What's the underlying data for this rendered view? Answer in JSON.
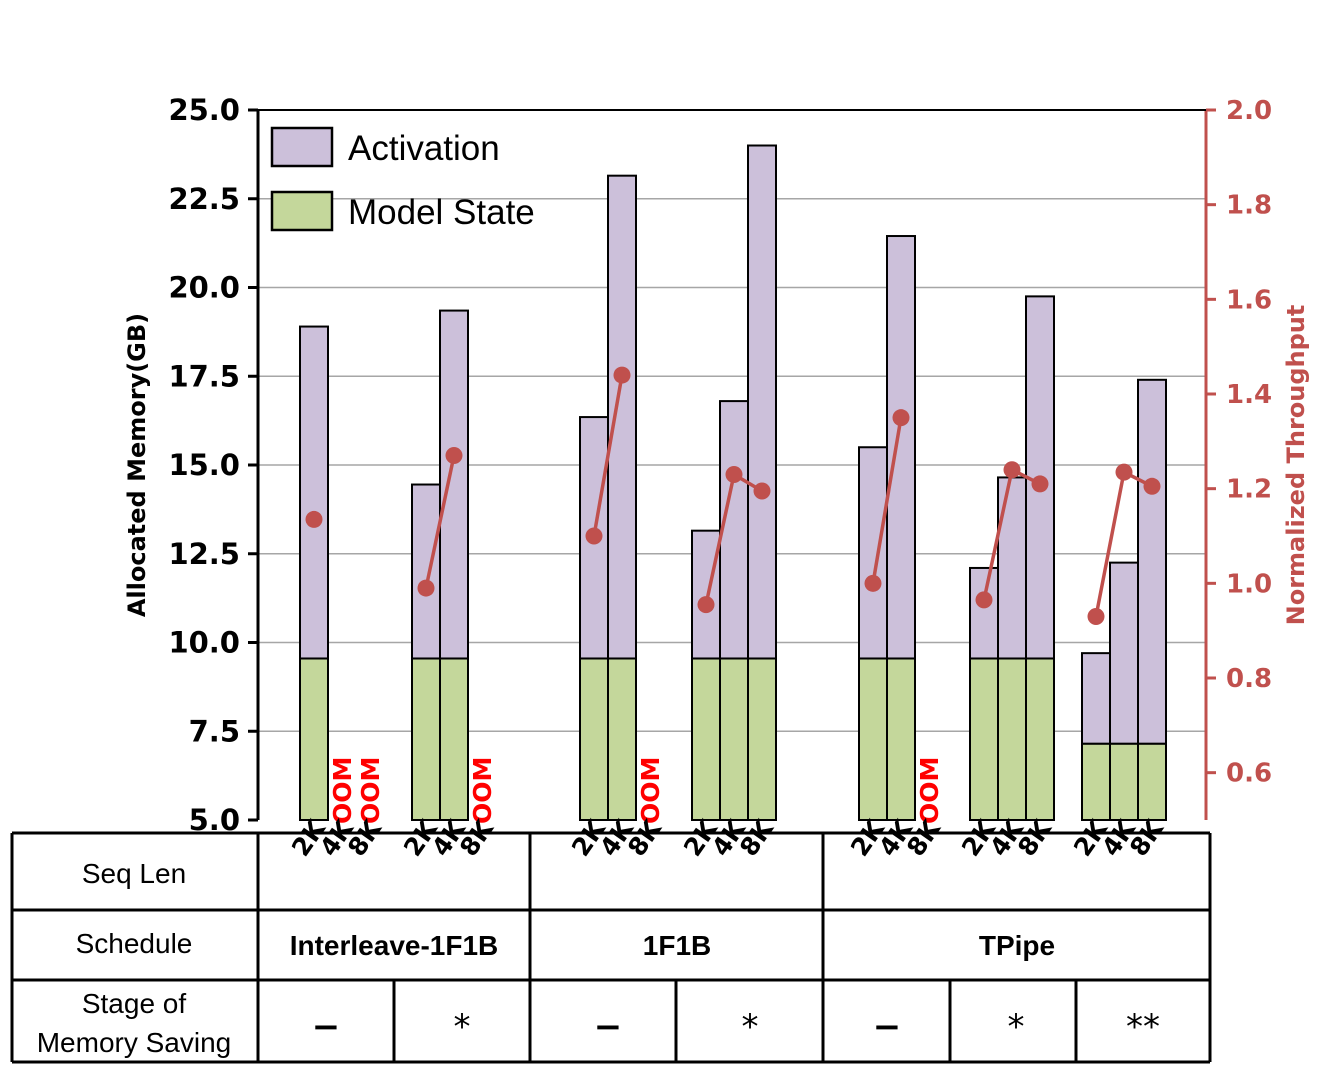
{
  "chart_data": {
    "type": "bar",
    "subtype": "stacked-bar-with-line",
    "title": "",
    "ylabel": "Allocated Memory(GB)",
    "y2label": "Normalized Throughput",
    "ylim": [
      5.0,
      25.0
    ],
    "y2lim": [
      0.5,
      2.0
    ],
    "yticks": [
      "5.0",
      "7.5",
      "10.0",
      "12.5",
      "15.0",
      "17.5",
      "20.0",
      "22.5",
      "25.0"
    ],
    "y2ticks": [
      "0.6",
      "0.8",
      "1.0",
      "1.2",
      "1.4",
      "1.6",
      "1.8",
      "2.0"
    ],
    "grid": true,
    "legend_position": "top-left",
    "legend": [
      "Activation",
      "Model State"
    ],
    "colors": {
      "activation": "#ccc0da",
      "model_state": "#c4d79b",
      "throughput": "#c0504d",
      "oom": "#ff0000"
    },
    "oom_label": "OOM",
    "groups": [
      {
        "schedule": "Interleave-1F1B",
        "stage": "−",
        "bars": [
          {
            "seq": "2K",
            "model_state": 9.55,
            "total": 18.9,
            "throughput": 1.135
          },
          {
            "seq": "4K",
            "oom": true
          },
          {
            "seq": "8K",
            "oom": true
          }
        ]
      },
      {
        "schedule": "Interleave-1F1B",
        "stage": "*",
        "bars": [
          {
            "seq": "2K",
            "model_state": 9.55,
            "total": 14.45,
            "throughput": 0.99
          },
          {
            "seq": "4K",
            "model_state": 9.55,
            "total": 19.35,
            "throughput": 1.27
          },
          {
            "seq": "8K",
            "oom": true
          }
        ]
      },
      {
        "schedule": "1F1B",
        "stage": "−",
        "bars": [
          {
            "seq": "2K",
            "model_state": 9.55,
            "total": 16.35,
            "throughput": 1.1
          },
          {
            "seq": "4K",
            "model_state": 9.55,
            "total": 23.15,
            "throughput": 1.44
          },
          {
            "seq": "8K",
            "oom": true
          }
        ]
      },
      {
        "schedule": "1F1B",
        "stage": "*",
        "bars": [
          {
            "seq": "2K",
            "model_state": 9.55,
            "total": 13.15,
            "throughput": 0.955
          },
          {
            "seq": "4K",
            "model_state": 9.55,
            "total": 16.8,
            "throughput": 1.23
          },
          {
            "seq": "8K",
            "model_state": 9.55,
            "total": 24.0,
            "throughput": 1.195
          }
        ]
      },
      {
        "schedule": "TPipe",
        "stage": "−",
        "bars": [
          {
            "seq": "2K",
            "model_state": 9.55,
            "total": 15.5,
            "throughput": 1.0
          },
          {
            "seq": "4K",
            "model_state": 9.55,
            "total": 21.45,
            "throughput": 1.35
          },
          {
            "seq": "8K",
            "oom": true
          }
        ]
      },
      {
        "schedule": "TPipe",
        "stage": "*",
        "bars": [
          {
            "seq": "2K",
            "model_state": 9.55,
            "total": 12.1,
            "throughput": 0.965
          },
          {
            "seq": "4K",
            "model_state": 9.55,
            "total": 14.65,
            "throughput": 1.24
          },
          {
            "seq": "8K",
            "model_state": 9.55,
            "total": 19.75,
            "throughput": 1.21
          }
        ]
      },
      {
        "schedule": "TPipe",
        "stage": "**",
        "bars": [
          {
            "seq": "2K",
            "model_state": 7.15,
            "total": 9.7,
            "throughput": 0.93
          },
          {
            "seq": "4K",
            "model_state": 7.15,
            "total": 12.25,
            "throughput": 1.235
          },
          {
            "seq": "8K",
            "model_state": 7.15,
            "total": 17.4,
            "throughput": 1.205
          }
        ]
      }
    ]
  },
  "table": {
    "seq_len_label": "Seq Len",
    "schedule_label": "Schedule",
    "stage_label_line1": "Stage of",
    "stage_label_line2": "Memory Saving",
    "schedules": [
      "Interleave-1F1B",
      "1F1B",
      "TPipe"
    ],
    "stages": [
      "−",
      "*",
      "−",
      "*",
      "−",
      "*",
      "**"
    ]
  }
}
